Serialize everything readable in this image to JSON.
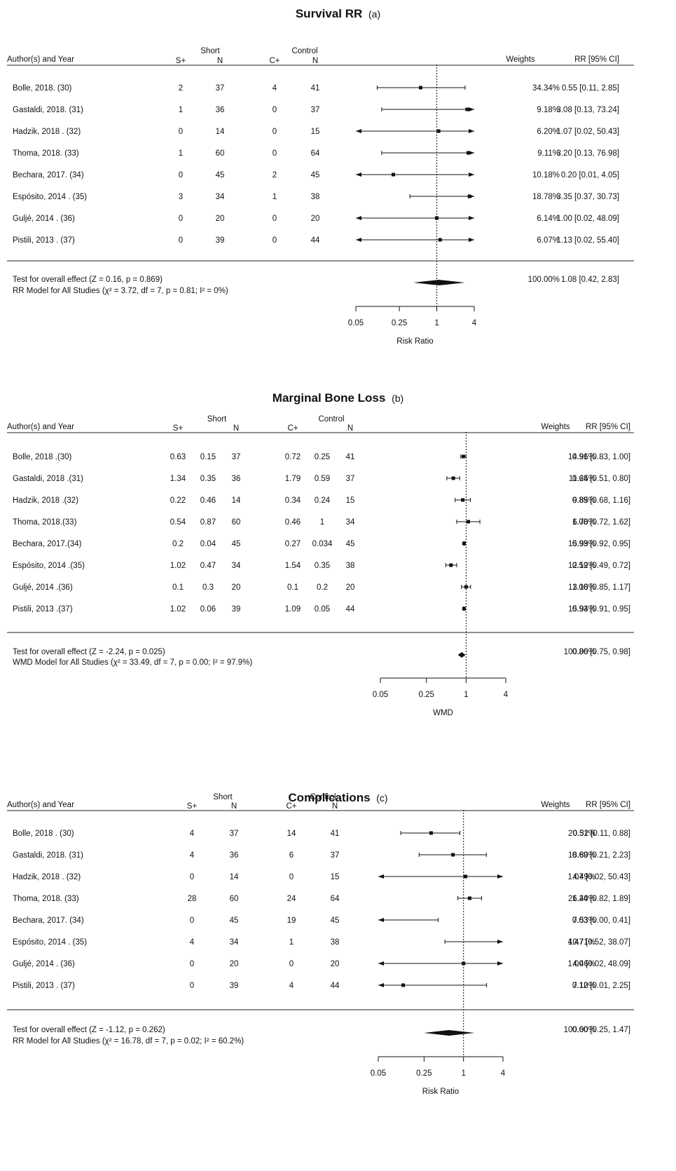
{
  "chart_data": [
    {
      "type": "forest",
      "title": "Survival RR",
      "label": "(a)",
      "headers": {
        "study": "Author(s) and Year",
        "group1": "Short",
        "group2": "Control",
        "g1_cols": [
          "S+",
          "N"
        ],
        "g2_cols": [
          "C+",
          "N"
        ],
        "weights": "Weights",
        "effect": "RR [95% CI]"
      },
      "scale": "log",
      "xlim": [
        0.05,
        4
      ],
      "xticks": [
        "0.05",
        "0.25",
        "1",
        "4"
      ],
      "xlabel": "Risk Ratio",
      "reference_line": 1,
      "studies": [
        {
          "name": "Bolle, 2018. (30)",
          "g1": [
            "2",
            "37"
          ],
          "g2": [
            "4",
            "41"
          ],
          "est": 0.55,
          "lo": 0.11,
          "hi": 2.85,
          "weight": "34.34%",
          "ci_text": "0.55 [0.11, 2.85]"
        },
        {
          "name": "Gastaldi, 2018. (31)",
          "g1": [
            "1",
            "36"
          ],
          "g2": [
            "0",
            "37"
          ],
          "est": 3.08,
          "lo": 0.13,
          "hi": 73.24,
          "weight": "9.18%",
          "ci_text": "3.08 [0.13, 73.24]"
        },
        {
          "name": "Hadzik, 2018 . (32)",
          "g1": [
            "0",
            "14"
          ],
          "g2": [
            "0",
            "15"
          ],
          "est": 1.07,
          "lo": 0.02,
          "hi": 50.43,
          "weight": "6.20%",
          "ci_text": "1.07 [0.02, 50.43]"
        },
        {
          "name": "Thoma, 2018. (33)",
          "g1": [
            "1",
            "60"
          ],
          "g2": [
            "0",
            "64"
          ],
          "est": 3.2,
          "lo": 0.13,
          "hi": 76.98,
          "weight": "9.11%",
          "ci_text": "3.20 [0.13, 76.98]"
        },
        {
          "name": "Bechara, 2017. (34)",
          "g1": [
            "0",
            "45"
          ],
          "g2": [
            "2",
            "45"
          ],
          "est": 0.2,
          "lo": 0.01,
          "hi": 4.05,
          "weight": "10.18%",
          "ci_text": "0.20 [0.01, 4.05]"
        },
        {
          "name": "Espósito, 2014 . (35)",
          "g1": [
            "3",
            "34"
          ],
          "g2": [
            "1",
            "38"
          ],
          "est": 3.35,
          "lo": 0.37,
          "hi": 30.73,
          "weight": "18.78%",
          "ci_text": "3.35 [0.37, 30.73]"
        },
        {
          "name": "Guljé, 2014 . (36)",
          "g1": [
            "0",
            "20"
          ],
          "g2": [
            "0",
            "20"
          ],
          "est": 1.0,
          "lo": 0.02,
          "hi": 48.09,
          "weight": "6.14%",
          "ci_text": "1.00 [0.02, 48.09]"
        },
        {
          "name": "Pistili, 2013 . (37)",
          "g1": [
            "0",
            "39"
          ],
          "g2": [
            "0",
            "44"
          ],
          "est": 1.13,
          "lo": 0.02,
          "hi": 55.4,
          "weight": "6.07%",
          "ci_text": "1.13 [0.02, 55.40]"
        }
      ],
      "overall": {
        "line1": "Test for overall effect (Z = 0.16, p = 0.869)",
        "line2": "RR Model for All Studies (χ² = 3.72, df = 7, p = 0.81; I² = 0%)",
        "est": 1.08,
        "lo": 0.42,
        "hi": 2.83,
        "weight": "100.00%",
        "ci_text": "1.08 [0.42, 2.83]"
      }
    },
    {
      "type": "forest",
      "title": "Marginal Bone Loss",
      "label": "(b)",
      "headers": {
        "study": "Author(s) and Year",
        "group1": "Short",
        "group2": "Control",
        "g1_cols": [
          "S+",
          "N"
        ],
        "g2_cols": [
          "C+",
          "N"
        ],
        "weights": "Weights",
        "effect": "RR [95% CI]"
      },
      "scale": "log",
      "xlim": [
        0.05,
        4
      ],
      "xticks": [
        "0.05",
        "0.25",
        "1",
        "4"
      ],
      "xlabel": "WMD",
      "reference_line": 1,
      "studies": [
        {
          "name": "Bolle, 2018 .(30)",
          "g1": [
            "0.63",
            "0.15",
            "37"
          ],
          "g2": [
            "0.72",
            "0.25",
            "41"
          ],
          "est": 0.91,
          "lo": 0.83,
          "hi": 1.0,
          "weight": "14.96%",
          "ci_text": "0.91 [0.83, 1.00]"
        },
        {
          "name": "Gastaldi, 2018 .(31)",
          "g1": [
            "1.34",
            "0.35",
            "36"
          ],
          "g2": [
            "1.79",
            "0.59",
            "37"
          ],
          "est": 0.64,
          "lo": 0.51,
          "hi": 0.8,
          "weight": "11.25%",
          "ci_text": "0.64 [0.51, 0.80]"
        },
        {
          "name": "Hadzik, 2018 .(32)",
          "g1": [
            "0.22",
            "0.46",
            "14"
          ],
          "g2": [
            "0.34",
            "0.24",
            "15"
          ],
          "est": 0.89,
          "lo": 0.68,
          "hi": 1.16,
          "weight": "9.85%",
          "ci_text": "0.89 [0.68, 1.16]"
        },
        {
          "name": "Thoma, 2018.(33)",
          "g1": [
            "0.54",
            "0.87",
            "60"
          ],
          "g2": [
            "0.46",
            "1",
            "34"
          ],
          "est": 1.08,
          "lo": 0.72,
          "hi": 1.62,
          "weight": "6.70%",
          "ci_text": "1.08 [0.72, 1.62]"
        },
        {
          "name": "Bechara, 2017.(34)",
          "g1": [
            "0.2",
            "0.04",
            "45"
          ],
          "g2": [
            "0.27",
            "0.034",
            "45"
          ],
          "est": 0.93,
          "lo": 0.92,
          "hi": 0.95,
          "weight": "15.99%",
          "ci_text": "0.93 [0.92, 0.95]"
        },
        {
          "name": "Espósito, 2014 .(35)",
          "g1": [
            "1.02",
            "0.47",
            "34"
          ],
          "g2": [
            "1.54",
            "0.35",
            "38"
          ],
          "est": 0.59,
          "lo": 0.49,
          "hi": 0.72,
          "weight": "12.12%",
          "ci_text": "0.59 [0.49, 0.72]"
        },
        {
          "name": "Guljé, 2014 .(36)",
          "g1": [
            "0.1",
            "0.3",
            "20"
          ],
          "g2": [
            "0.1",
            "0.2",
            "20"
          ],
          "est": 1.0,
          "lo": 0.85,
          "hi": 1.17,
          "weight": "13.18%",
          "ci_text": "1.00 [0.85, 1.17]"
        },
        {
          "name": "Pistili, 2013 .(37)",
          "g1": [
            "1.02",
            "0.06",
            "39"
          ],
          "g2": [
            "1.09",
            "0.05",
            "44"
          ],
          "est": 0.93,
          "lo": 0.91,
          "hi": 0.95,
          "weight": "15.94%",
          "ci_text": "0.93 [0.91, 0.95]"
        }
      ],
      "overall": {
        "line1": "Test for overall effect (Z = -2.24, p = 0.025)",
        "line2": "WMD Model for All Studies (χ² = 33.49, df = 7, p = 0.00; I² = 97.9%)",
        "est": 0.86,
        "lo": 0.75,
        "hi": 0.98,
        "weight": "100.00%",
        "ci_text": "0.86 [0.75, 0.98]"
      }
    },
    {
      "type": "forest",
      "title": "Complications",
      "label": "(c)",
      "headers": {
        "study": "Author(s) and Year",
        "group1": "Short",
        "group2": "Control",
        "g1_cols": [
          "S+",
          "N"
        ],
        "g2_cols": [
          "C+",
          "N"
        ],
        "weights": "Weights",
        "effect": "RR [95% CI]"
      },
      "scale": "log",
      "xlim": [
        0.05,
        4
      ],
      "xticks": [
        "0.05",
        "0.25",
        "1",
        "4"
      ],
      "xlabel": "Risk Ratio",
      "reference_line": 1,
      "studies": [
        {
          "name": "Bolle, 2018 . (30)",
          "g1": [
            "4",
            "37"
          ],
          "g2": [
            "14",
            "41"
          ],
          "est": 0.32,
          "lo": 0.11,
          "hi": 0.88,
          "weight": "20.51%",
          "ci_text": "0.32 [0.11, 0.88]"
        },
        {
          "name": "Gastaldi, 2018. (31)",
          "g1": [
            "4",
            "36"
          ],
          "g2": [
            "6",
            "37"
          ],
          "est": 0.69,
          "lo": 0.21,
          "hi": 2.23,
          "weight": "18.80%",
          "ci_text": "0.69 [0.21, 2.23]"
        },
        {
          "name": "Hadzik, 2018 . (32)",
          "g1": [
            "0",
            "14"
          ],
          "g2": [
            "0",
            "15"
          ],
          "est": 1.07,
          "lo": 0.02,
          "hi": 50.43,
          "weight": "4.49%",
          "ci_text": "1.07 [0.02, 50.43]"
        },
        {
          "name": "Thoma, 2018. (33)",
          "g1": [
            "28",
            "60"
          ],
          "g2": [
            "24",
            "64"
          ],
          "est": 1.24,
          "lo": 0.82,
          "hi": 1.89,
          "weight": "26.40%",
          "ci_text": "1.24 [0.82, 1.89]"
        },
        {
          "name": "Bechara, 2017. (34)",
          "g1": [
            "0",
            "45"
          ],
          "g2": [
            "19",
            "45"
          ],
          "est": 0.03,
          "lo": 0.0,
          "hi": 0.41,
          "weight": "7.53%",
          "ci_text": "0.03 [0.00, 0.41]"
        },
        {
          "name": "Espósito, 2014 . (35)",
          "g1": [
            "4",
            "34"
          ],
          "g2": [
            "1",
            "38"
          ],
          "est": 4.47,
          "lo": 0.52,
          "hi": 38.07,
          "weight": "10.71%",
          "ci_text": "4.47 [0.52, 38.07]"
        },
        {
          "name": "Guljé, 2014 . (36)",
          "g1": [
            "0",
            "20"
          ],
          "g2": [
            "0",
            "20"
          ],
          "est": 1.0,
          "lo": 0.02,
          "hi": 48.09,
          "weight": "4.46%",
          "ci_text": "1.00 [0.02, 48.09]"
        },
        {
          "name": "Pistili, 2013 . (37)",
          "g1": [
            "0",
            "39"
          ],
          "g2": [
            "4",
            "44"
          ],
          "est": 0.12,
          "lo": 0.01,
          "hi": 2.25,
          "weight": "7.10%",
          "ci_text": "0.12 [0.01, 2.25]"
        }
      ],
      "overall": {
        "line1": "Test for overall effect (Z = -1.12, p = 0.262)",
        "line2": "RR Model for All Studies (χ² = 16.78, df = 7, p = 0.02; I² = 60.2%)",
        "est": 0.6,
        "lo": 0.25,
        "hi": 1.47,
        "weight": "100.00%",
        "ci_text": "0.60 [0.25, 1.47]"
      }
    }
  ]
}
